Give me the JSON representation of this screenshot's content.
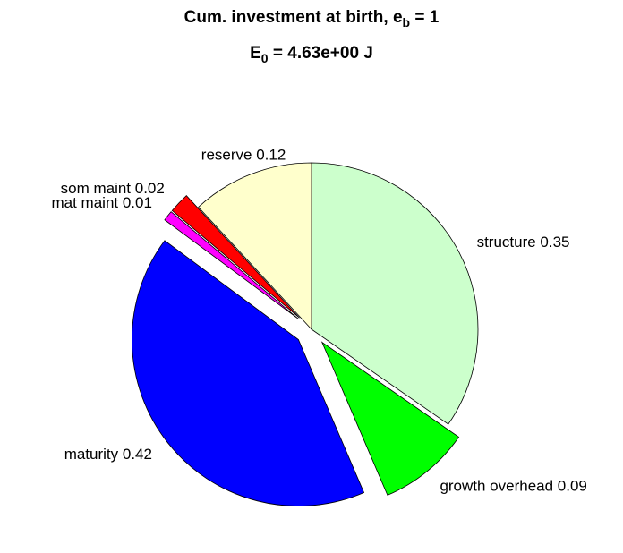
{
  "chart_data": {
    "type": "pie",
    "title": [
      [
        "Cum. investment at birth, e",
        "b",
        " = 1"
      ],
      [
        "E",
        "0",
        " = 4.63e+00 J"
      ]
    ],
    "categories": [
      "structure",
      "growth overhead",
      "maturity",
      "mat maint",
      "som maint",
      "reserve"
    ],
    "values": [
      0.35,
      0.09,
      0.42,
      0.01,
      0.02,
      0.12
    ],
    "value_labels": [
      "structure 0.35",
      "growth overhead 0.09",
      "maturity 0.42",
      "mat maint 0.01",
      "som maint 0.02",
      "reserve 0.12"
    ],
    "colors": [
      "#ccffcc",
      "#00ff00",
      "#0000ff",
      "#ff00ff",
      "#ff0000",
      "#ffffcc"
    ],
    "explode": [
      false,
      true,
      true,
      true,
      true,
      false
    ]
  }
}
